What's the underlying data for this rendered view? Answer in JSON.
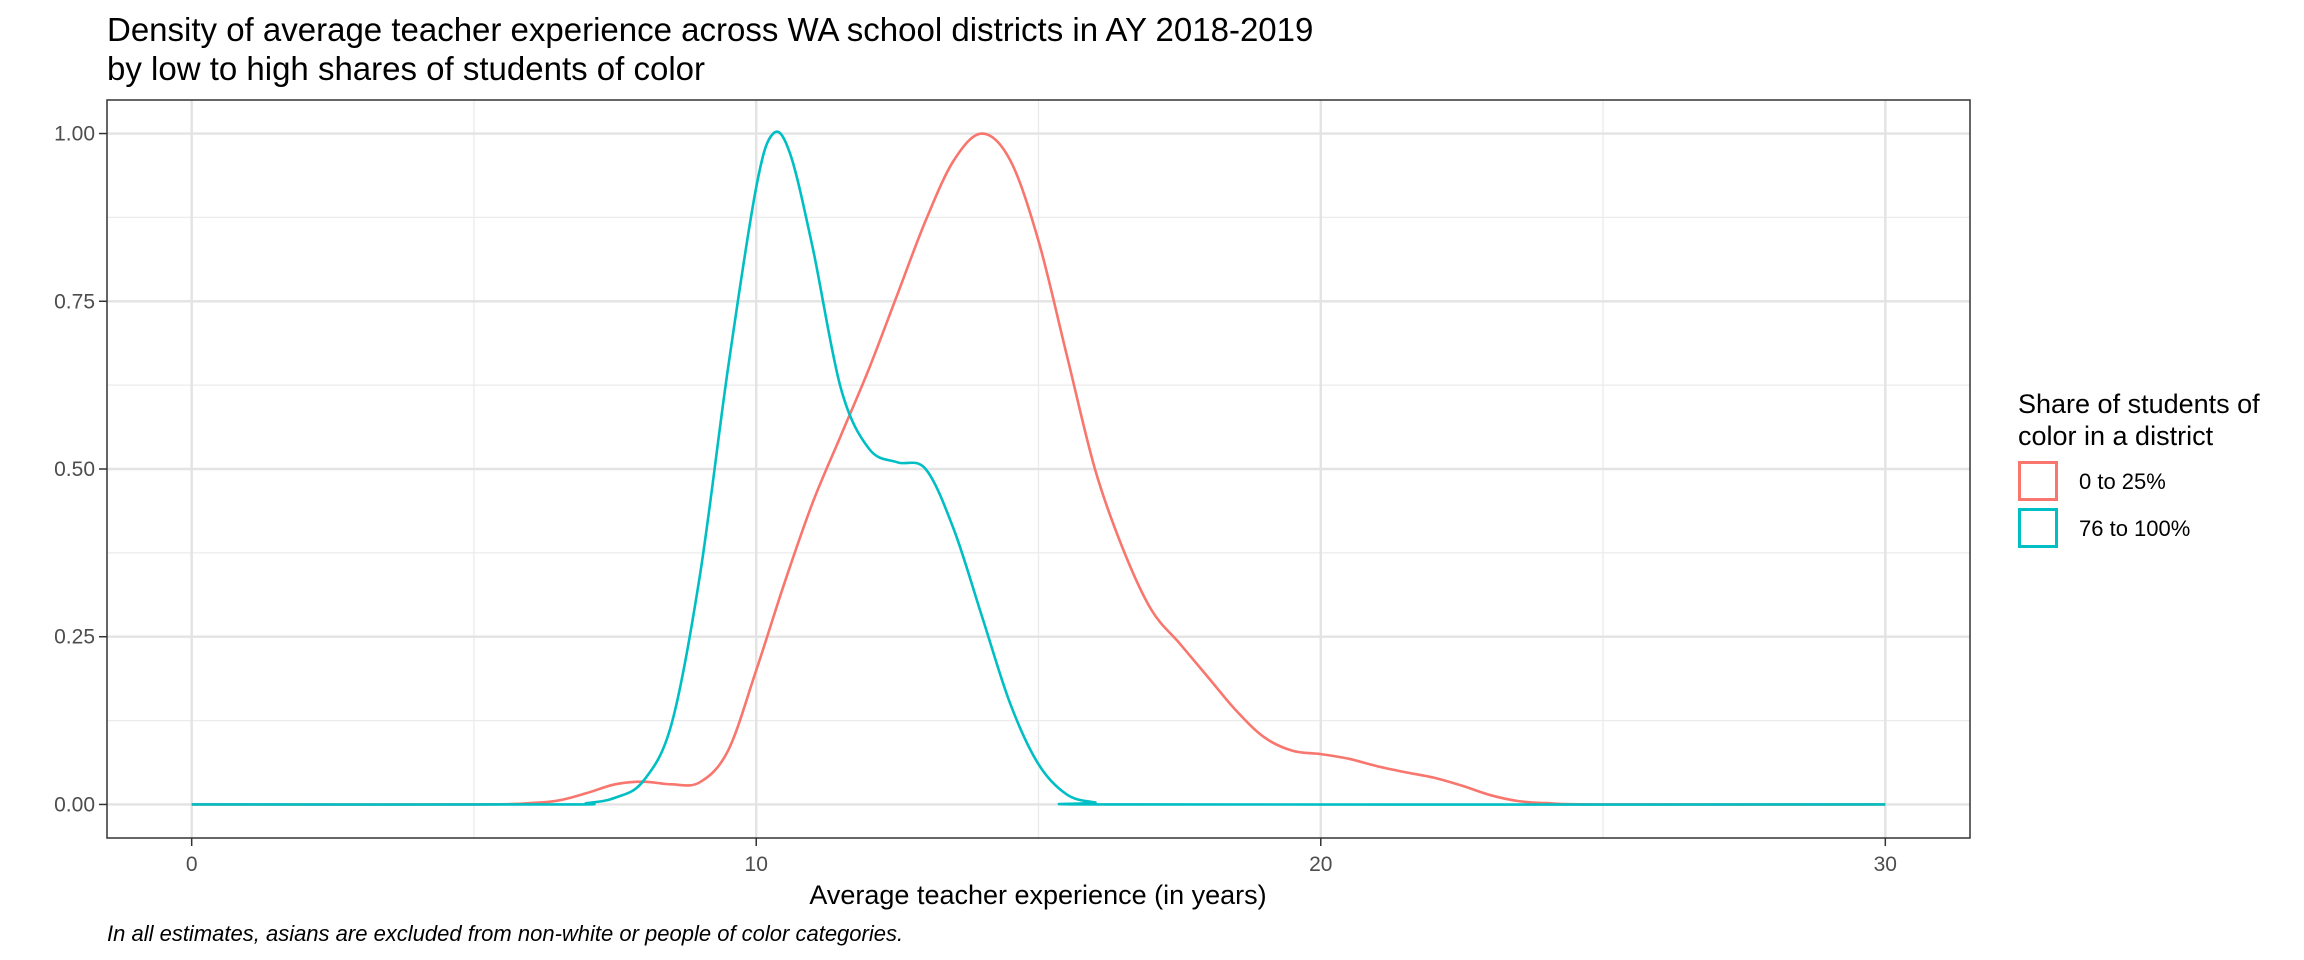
{
  "chart_data": {
    "type": "line",
    "title": "Density of average teacher experience across WA school districts in AY 2018-2019",
    "subtitle": "by low to high shares of students of color",
    "xlabel": "Average teacher experience (in years)",
    "ylabel": "",
    "xlim": [
      -1.5,
      31.5
    ],
    "ylim": [
      -0.05,
      1.05
    ],
    "x_ticks": [
      0,
      10,
      20,
      30
    ],
    "x_tick_labels": [
      "0",
      "10",
      "20",
      "30"
    ],
    "y_ticks": [
      0,
      0.25,
      0.5,
      0.75,
      1
    ],
    "y_tick_labels": [
      "0.00",
      "0.25",
      "0.50",
      "0.75",
      "1.00"
    ],
    "grid": true,
    "legend": {
      "title_lines": [
        "Share of students of",
        "color in a district"
      ],
      "position": "right"
    },
    "series": [
      {
        "name": "0 to 25%",
        "color": "#F8766D",
        "points": [
          [
            0,
            0
          ],
          [
            5,
            0
          ],
          [
            6,
            0.002
          ],
          [
            6.5,
            0.006
          ],
          [
            7,
            0.017
          ],
          [
            7.5,
            0.03
          ],
          [
            8,
            0.034
          ],
          [
            8.5,
            0.03
          ],
          [
            9,
            0.033
          ],
          [
            9.5,
            0.08
          ],
          [
            10,
            0.2
          ],
          [
            10.5,
            0.33
          ],
          [
            11,
            0.45
          ],
          [
            11.5,
            0.55
          ],
          [
            12,
            0.65
          ],
          [
            12.5,
            0.76
          ],
          [
            13,
            0.87
          ],
          [
            13.5,
            0.96
          ],
          [
            14,
            1.0
          ],
          [
            14.5,
            0.96
          ],
          [
            15,
            0.84
          ],
          [
            15.5,
            0.67
          ],
          [
            16,
            0.5
          ],
          [
            16.5,
            0.38
          ],
          [
            17,
            0.29
          ],
          [
            17.5,
            0.24
          ],
          [
            18,
            0.19
          ],
          [
            18.5,
            0.14
          ],
          [
            19,
            0.1
          ],
          [
            19.5,
            0.08
          ],
          [
            20,
            0.075
          ],
          [
            20.5,
            0.068
          ],
          [
            21,
            0.057
          ],
          [
            21.5,
            0.048
          ],
          [
            22,
            0.04
          ],
          [
            22.5,
            0.028
          ],
          [
            23,
            0.014
          ],
          [
            23.5,
            0.005
          ],
          [
            24,
            0.002
          ],
          [
            25,
            0
          ],
          [
            30,
            0
          ]
        ]
      },
      {
        "name": "76 to 100%",
        "color": "#00BFC4",
        "points": [
          [
            0,
            0
          ],
          [
            6.5,
            0
          ],
          [
            7,
            0.002
          ],
          [
            7.5,
            0.01
          ],
          [
            8,
            0.035
          ],
          [
            8.5,
            0.12
          ],
          [
            9,
            0.34
          ],
          [
            9.5,
            0.65
          ],
          [
            10,
            0.92
          ],
          [
            10.3,
            1.0
          ],
          [
            10.6,
            0.97
          ],
          [
            11,
            0.83
          ],
          [
            11.5,
            0.62
          ],
          [
            12,
            0.53
          ],
          [
            12.5,
            0.51
          ],
          [
            13,
            0.5
          ],
          [
            13.5,
            0.41
          ],
          [
            14,
            0.28
          ],
          [
            14.5,
            0.15
          ],
          [
            15,
            0.06
          ],
          [
            15.5,
            0.015
          ],
          [
            16,
            0.003
          ],
          [
            16.5,
            0
          ],
          [
            30,
            0
          ]
        ]
      }
    ]
  },
  "caption": "In all estimates, asians are excluded from non-white or people of color categories."
}
